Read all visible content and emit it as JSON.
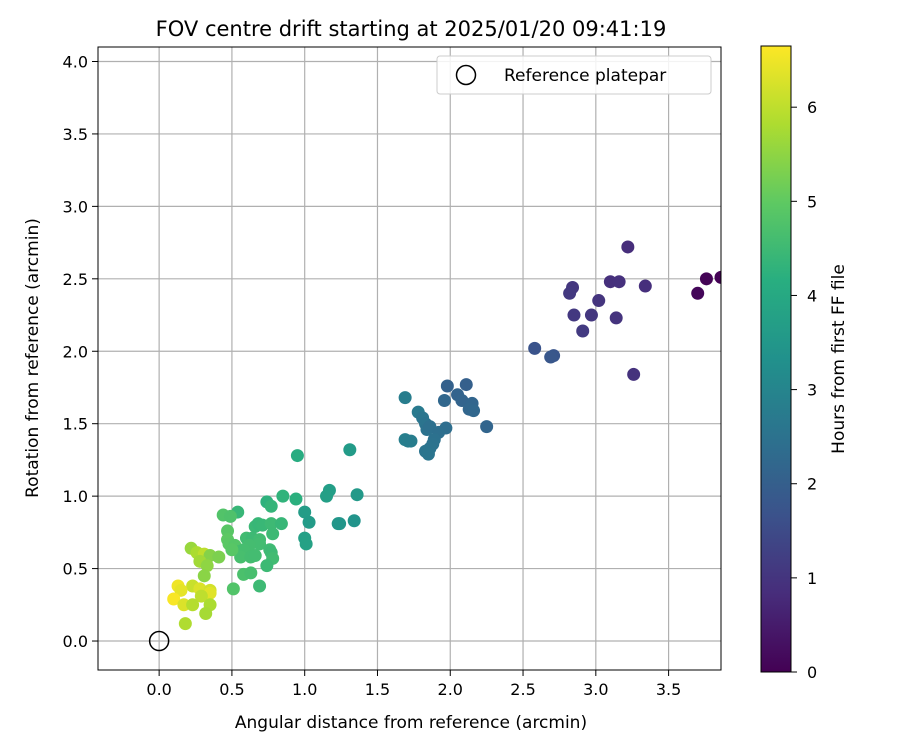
{
  "chart_data": {
    "type": "scatter",
    "title": "FOV centre drift starting at 2025/01/20 09:41:19",
    "xlabel": "Angular distance from reference (arcmin)",
    "ylabel": "Rotation from reference (arcmin)",
    "xlim": [
      -0.42,
      3.86
    ],
    "ylim": [
      -0.2,
      4.1
    ],
    "xticks": [
      "0.0",
      "0.5",
      "1.0",
      "1.5",
      "2.0",
      "2.5",
      "3.0",
      "3.5"
    ],
    "yticks": [
      "0.0",
      "0.5",
      "1.0",
      "1.5",
      "2.0",
      "2.5",
      "3.0",
      "3.5",
      "4.0"
    ],
    "grid": true,
    "legend": {
      "position": "top-right",
      "label": "Reference platepar",
      "marker": "open-circle"
    },
    "reference_point": {
      "x": 0.0,
      "y": 0.0
    },
    "colorbar": {
      "label": "Hours from first FF file",
      "min": 0,
      "max": 6.65,
      "ticks": [
        "0",
        "1",
        "2",
        "3",
        "4",
        "5",
        "6"
      ],
      "colormap": "viridis"
    },
    "series": [
      {
        "points": [
          [
            3.76,
            2.5,
            0.05
          ],
          [
            3.86,
            2.51,
            0.02
          ],
          [
            3.7,
            2.4,
            0.1
          ],
          [
            3.22,
            2.72,
            0.85
          ],
          [
            3.1,
            2.48,
            0.9
          ],
          [
            3.16,
            2.48,
            0.92
          ],
          [
            3.34,
            2.45,
            0.88
          ],
          [
            2.84,
            2.44,
            1.05
          ],
          [
            2.82,
            2.4,
            1.1
          ],
          [
            3.02,
            2.35,
            1.0
          ],
          [
            2.85,
            2.25,
            1.08
          ],
          [
            2.97,
            2.25,
            1.05
          ],
          [
            3.14,
            2.23,
            0.98
          ],
          [
            2.91,
            2.14,
            1.12
          ],
          [
            3.26,
            1.84,
            0.95
          ],
          [
            2.58,
            2.02,
            1.7
          ],
          [
            2.71,
            1.97,
            1.75
          ],
          [
            2.69,
            1.96,
            1.78
          ],
          [
            1.98,
            1.76,
            2.05
          ],
          [
            2.11,
            1.77,
            2.02
          ],
          [
            2.05,
            1.7,
            2.1
          ],
          [
            2.08,
            1.66,
            2.12
          ],
          [
            1.96,
            1.66,
            2.2
          ],
          [
            2.15,
            1.64,
            2.15
          ],
          [
            2.13,
            1.6,
            2.18
          ],
          [
            2.16,
            1.59,
            2.2
          ],
          [
            2.25,
            1.48,
            2.15
          ],
          [
            1.69,
            1.68,
            2.8
          ],
          [
            1.78,
            1.58,
            2.7
          ],
          [
            1.81,
            1.54,
            2.6
          ],
          [
            1.83,
            1.5,
            2.55
          ],
          [
            1.84,
            1.46,
            2.5
          ],
          [
            1.86,
            1.48,
            2.45
          ],
          [
            1.97,
            1.47,
            2.4
          ],
          [
            1.92,
            1.44,
            2.42
          ],
          [
            1.89,
            1.39,
            2.48
          ],
          [
            1.88,
            1.36,
            2.5
          ],
          [
            1.86,
            1.33,
            2.52
          ],
          [
            1.83,
            1.31,
            2.55
          ],
          [
            1.85,
            1.29,
            2.58
          ],
          [
            1.69,
            1.39,
            2.85
          ],
          [
            1.71,
            1.38,
            2.82
          ],
          [
            1.73,
            1.38,
            2.8
          ],
          [
            1.31,
            1.32,
            3.6
          ],
          [
            1.36,
            1.01,
            3.55
          ],
          [
            1.17,
            1.04,
            3.7
          ],
          [
            1.15,
            1.0,
            3.72
          ],
          [
            1.0,
            0.89,
            3.65
          ],
          [
            1.03,
            0.82,
            3.6
          ],
          [
            1.23,
            0.81,
            3.5
          ],
          [
            1.24,
            0.81,
            3.48
          ],
          [
            1.34,
            0.83,
            3.4
          ],
          [
            1.0,
            0.71,
            3.75
          ],
          [
            1.01,
            0.67,
            3.78
          ],
          [
            0.95,
            1.28,
            4.1
          ],
          [
            0.94,
            0.98,
            4.2
          ],
          [
            0.85,
            1.0,
            4.3
          ],
          [
            0.74,
            0.96,
            4.25
          ],
          [
            0.77,
            0.93,
            4.35
          ],
          [
            0.54,
            0.89,
            4.4
          ],
          [
            0.44,
            0.87,
            4.8
          ],
          [
            0.49,
            0.86,
            4.75
          ],
          [
            0.47,
            0.76,
            4.9
          ],
          [
            0.47,
            0.7,
            4.95
          ],
          [
            0.48,
            0.67,
            4.92
          ],
          [
            0.52,
            0.66,
            4.85
          ],
          [
            0.55,
            0.62,
            4.7
          ],
          [
            0.6,
            0.71,
            4.55
          ],
          [
            0.64,
            0.71,
            4.5
          ],
          [
            0.66,
            0.79,
            4.45
          ],
          [
            0.68,
            0.81,
            4.4
          ],
          [
            0.71,
            0.8,
            4.42
          ],
          [
            0.77,
            0.81,
            4.5
          ],
          [
            0.78,
            0.74,
            4.48
          ],
          [
            0.84,
            0.81,
            4.4
          ],
          [
            0.69,
            0.7,
            4.55
          ],
          [
            0.69,
            0.67,
            4.58
          ],
          [
            0.62,
            0.66,
            4.6
          ],
          [
            0.58,
            0.63,
            4.62
          ],
          [
            0.56,
            0.58,
            4.65
          ],
          [
            0.63,
            0.58,
            4.6
          ],
          [
            0.66,
            0.59,
            4.58
          ],
          [
            0.76,
            0.63,
            4.52
          ],
          [
            0.77,
            0.61,
            4.5
          ],
          [
            0.78,
            0.57,
            4.55
          ],
          [
            0.74,
            0.52,
            4.48
          ],
          [
            0.58,
            0.46,
            4.7
          ],
          [
            0.63,
            0.47,
            4.65
          ],
          [
            0.69,
            0.38,
            4.5
          ],
          [
            0.51,
            0.36,
            4.8
          ],
          [
            0.5,
            0.63,
            4.9
          ],
          [
            0.22,
            0.64,
            5.6
          ],
          [
            0.26,
            0.61,
            5.8
          ],
          [
            0.31,
            0.6,
            6.0
          ],
          [
            0.35,
            0.59,
            5.4
          ],
          [
            0.41,
            0.58,
            5.3
          ],
          [
            0.28,
            0.55,
            5.7
          ],
          [
            0.33,
            0.52,
            5.5
          ],
          [
            0.31,
            0.45,
            5.45
          ],
          [
            0.13,
            0.38,
            6.5
          ],
          [
            0.23,
            0.38,
            6.1
          ],
          [
            0.28,
            0.36,
            6.3
          ],
          [
            0.35,
            0.35,
            6.2
          ],
          [
            0.35,
            0.33,
            6.35
          ],
          [
            0.15,
            0.35,
            6.4
          ],
          [
            0.29,
            0.31,
            6.0
          ],
          [
            0.1,
            0.29,
            6.6
          ],
          [
            0.17,
            0.25,
            6.3
          ],
          [
            0.23,
            0.25,
            5.9
          ],
          [
            0.35,
            0.25,
            5.8
          ],
          [
            0.32,
            0.19,
            5.75
          ],
          [
            0.18,
            0.12,
            5.85
          ]
        ]
      }
    ]
  }
}
